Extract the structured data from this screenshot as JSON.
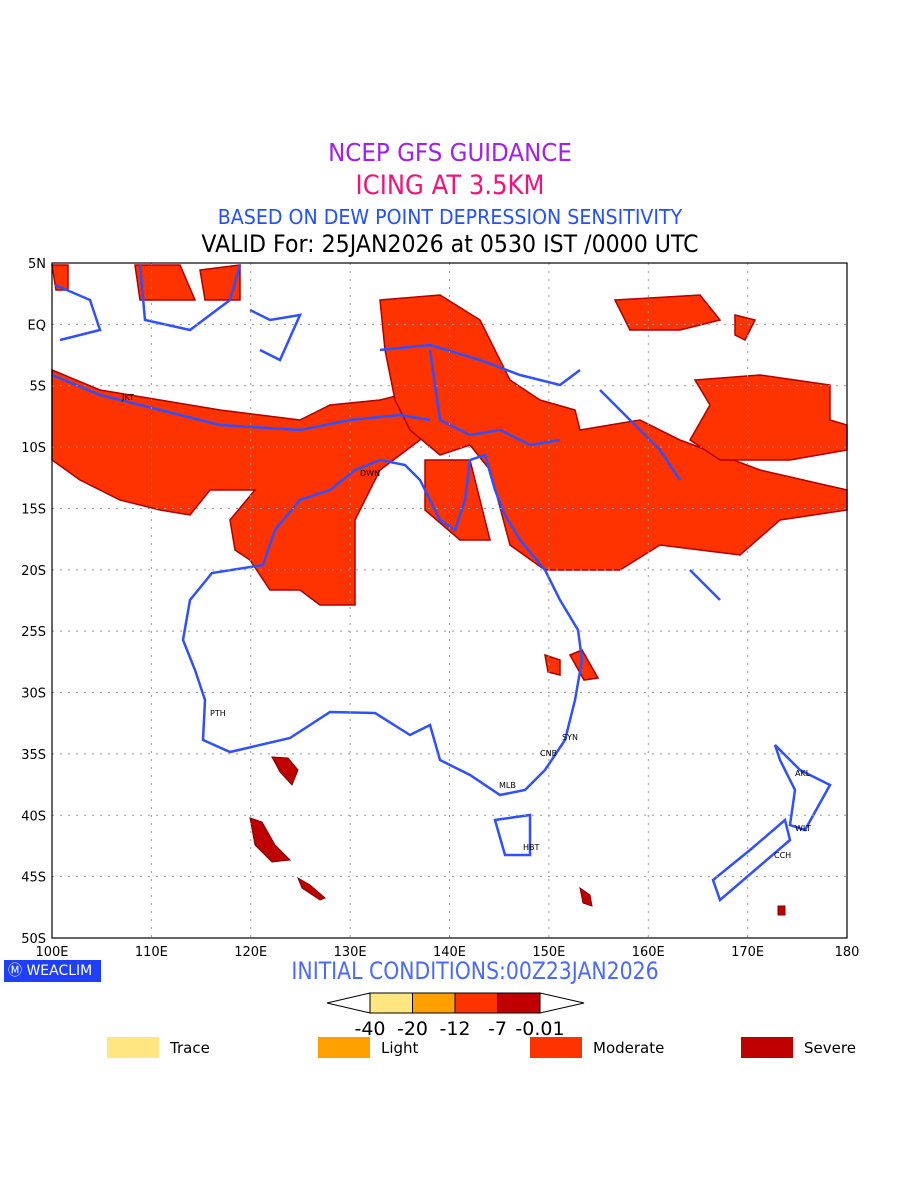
{
  "titles": {
    "line1": "NCEP GFS GUIDANCE",
    "line2": "ICING AT 3.5KM",
    "line3": "BASED ON DEW POINT DEPRESSION SENSITIVITY",
    "line4": "VALID For: 25JAN2026 at 0530 IST /0000 UTC"
  },
  "map": {
    "lat_labels": [
      "5N",
      "EQ",
      "5S",
      "10S",
      "15S",
      "20S",
      "25S",
      "30S",
      "35S",
      "40S",
      "45S",
      "50S"
    ],
    "lon_labels": [
      "100E",
      "110E",
      "120E",
      "130E",
      "140E",
      "150E",
      "160E",
      "170E",
      "180"
    ],
    "cities": [
      "JKT",
      "DWN",
      "PTH",
      "SYN",
      "CNB",
      "MLB",
      "HBT",
      "AKL",
      "WLT",
      "CCH"
    ],
    "colors": {
      "coast": "#2e50ff",
      "moderate": "#ff3300",
      "severe": "#c00000"
    }
  },
  "footer": {
    "logo": "WEACLIM",
    "initial": "INITIAL CONDITIONS:00Z23JAN2026"
  },
  "colorbar": {
    "levels": [
      "-40",
      "-20",
      "-12",
      "-7",
      "-0.01"
    ],
    "colors": [
      "#ffe680",
      "#ffa000",
      "#ff3300",
      "#c00000"
    ]
  },
  "legend": [
    {
      "label": "Trace",
      "color": "#ffe680"
    },
    {
      "label": "Light",
      "color": "#ffa000"
    },
    {
      "label": "Moderate",
      "color": "#ff3300"
    },
    {
      "label": "Severe",
      "color": "#c00000"
    }
  ]
}
